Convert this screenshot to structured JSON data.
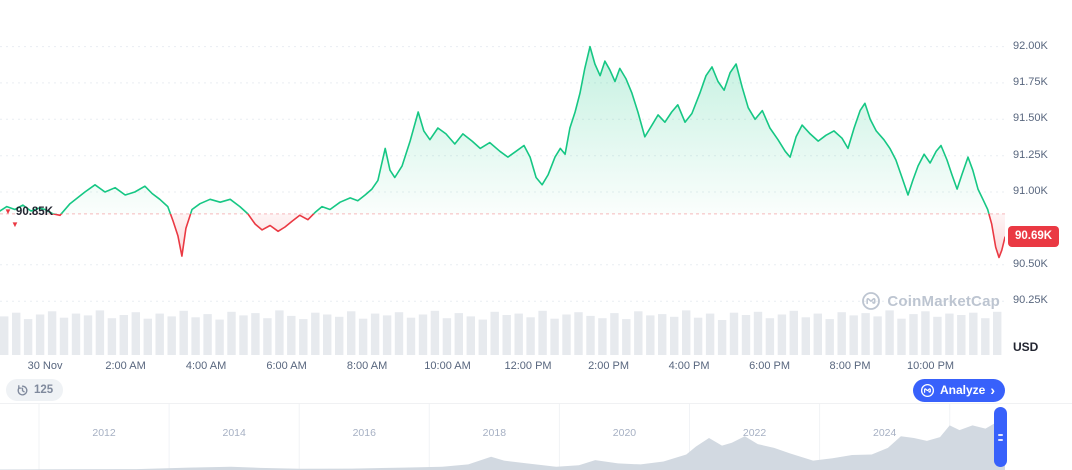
{
  "colors": {
    "up": "#16c784",
    "down": "#ea3943",
    "accent_blue": "#3861fb",
    "axis_text": "#58667e",
    "muted_text": "#a6b0c3",
    "grid": "#e9edf2",
    "volume_bar": "#e7eaee",
    "mini_fill": "#d2d9e1",
    "badge_bg": "#ea3943",
    "watermark": "#bdc5d1"
  },
  "y_axis": {
    "unit_label": "USD",
    "current_price": {
      "label": "90.69K",
      "value": 90.69
    },
    "open_marker": {
      "label": "90.85K",
      "value": 90.85
    }
  },
  "toolbar": {
    "history_count": "125",
    "analyze_label": "Analyze",
    "analyze_chevron": "›"
  },
  "watermark": {
    "text": "CoinMarketCap"
  },
  "chart_data": [
    {
      "type": "area",
      "name": "intraday-price",
      "title": "Price (USD), 30 Nov",
      "x_unit": "hours since 30 Nov 00:00",
      "x_range": [
        -1.12,
        23.85
      ],
      "y_range": [
        89.88,
        92.32
      ],
      "baseline": 90.85,
      "last_value": 90.69,
      "up_color": "#16c784",
      "down_color": "#ea3943",
      "y_ticks": [
        {
          "label": "92.00K",
          "value": 92.0
        },
        {
          "label": "91.75K",
          "value": 91.75
        },
        {
          "label": "91.50K",
          "value": 91.5
        },
        {
          "label": "91.25K",
          "value": 91.25
        },
        {
          "label": "91.00K",
          "value": 91.0
        },
        {
          "label": "90.50K",
          "value": 90.5
        },
        {
          "label": "90.25K",
          "value": 90.25
        }
      ],
      "x_ticks": [
        {
          "label": "30 Nov",
          "hour": 0
        },
        {
          "label": "2:00 AM",
          "hour": 2
        },
        {
          "label": "4:00 AM",
          "hour": 4
        },
        {
          "label": "6:00 AM",
          "hour": 6
        },
        {
          "label": "8:00 AM",
          "hour": 8
        },
        {
          "label": "10:00 AM",
          "hour": 10
        },
        {
          "label": "12:00 PM",
          "hour": 12
        },
        {
          "label": "2:00 PM",
          "hour": 14
        },
        {
          "label": "4:00 PM",
          "hour": 16
        },
        {
          "label": "6:00 PM",
          "hour": 18
        },
        {
          "label": "8:00 PM",
          "hour": 20
        },
        {
          "label": "10:00 PM",
          "hour": 22
        }
      ],
      "points": [
        [
          -1.12,
          90.87
        ],
        [
          -0.95,
          90.9
        ],
        [
          -0.75,
          90.88
        ],
        [
          -0.55,
          90.91
        ],
        [
          -0.35,
          90.87
        ],
        [
          -0.15,
          90.89
        ],
        [
          0.0,
          90.88
        ],
        [
          0.2,
          90.85
        ],
        [
          0.37,
          90.84
        ],
        [
          0.62,
          90.92
        ],
        [
          0.99,
          91.0
        ],
        [
          1.24,
          91.05
        ],
        [
          1.49,
          91.0
        ],
        [
          1.74,
          91.03
        ],
        [
          1.99,
          90.98
        ],
        [
          2.23,
          91.0
        ],
        [
          2.48,
          91.04
        ],
        [
          2.66,
          90.99
        ],
        [
          2.85,
          90.95
        ],
        [
          3.05,
          90.9
        ],
        [
          3.18,
          90.8
        ],
        [
          3.3,
          90.7
        ],
        [
          3.4,
          90.56
        ],
        [
          3.5,
          90.75
        ],
        [
          3.65,
          90.88
        ],
        [
          3.85,
          90.92
        ],
        [
          4.1,
          90.95
        ],
        [
          4.35,
          90.93
        ],
        [
          4.6,
          90.95
        ],
        [
          4.84,
          90.9
        ],
        [
          5.04,
          90.85
        ],
        [
          5.22,
          90.78
        ],
        [
          5.39,
          90.74
        ],
        [
          5.59,
          90.77
        ],
        [
          5.79,
          90.73
        ],
        [
          5.96,
          90.76
        ],
        [
          6.14,
          90.8
        ],
        [
          6.33,
          90.84
        ],
        [
          6.53,
          90.81
        ],
        [
          6.71,
          90.86
        ],
        [
          6.88,
          90.9
        ],
        [
          7.08,
          90.88
        ],
        [
          7.33,
          90.93
        ],
        [
          7.58,
          90.96
        ],
        [
          7.77,
          90.94
        ],
        [
          7.95,
          90.98
        ],
        [
          8.12,
          91.02
        ],
        [
          8.27,
          91.08
        ],
        [
          8.45,
          91.3
        ],
        [
          8.57,
          91.15
        ],
        [
          8.69,
          91.1
        ],
        [
          8.87,
          91.18
        ],
        [
          9.07,
          91.35
        ],
        [
          9.27,
          91.55
        ],
        [
          9.41,
          91.42
        ],
        [
          9.56,
          91.36
        ],
        [
          9.76,
          91.44
        ],
        [
          9.96,
          91.4
        ],
        [
          10.18,
          91.33
        ],
        [
          10.38,
          91.4
        ],
        [
          10.61,
          91.35
        ],
        [
          10.81,
          91.3
        ],
        [
          11.05,
          91.34
        ],
        [
          11.3,
          91.28
        ],
        [
          11.5,
          91.24
        ],
        [
          11.7,
          91.28
        ],
        [
          11.9,
          91.32
        ],
        [
          12.05,
          91.24
        ],
        [
          12.2,
          91.1
        ],
        [
          12.35,
          91.05
        ],
        [
          12.5,
          91.12
        ],
        [
          12.67,
          91.24
        ],
        [
          12.8,
          91.3
        ],
        [
          12.92,
          91.26
        ],
        [
          13.04,
          91.44
        ],
        [
          13.17,
          91.55
        ],
        [
          13.29,
          91.68
        ],
        [
          13.41,
          91.85
        ],
        [
          13.54,
          92.0
        ],
        [
          13.66,
          91.88
        ],
        [
          13.79,
          91.8
        ],
        [
          13.91,
          91.9
        ],
        [
          14.03,
          91.84
        ],
        [
          14.16,
          91.76
        ],
        [
          14.28,
          91.85
        ],
        [
          14.43,
          91.78
        ],
        [
          14.58,
          91.68
        ],
        [
          14.73,
          91.55
        ],
        [
          14.9,
          91.38
        ],
        [
          15.08,
          91.46
        ],
        [
          15.23,
          91.53
        ],
        [
          15.4,
          91.48
        ],
        [
          15.57,
          91.55
        ],
        [
          15.72,
          91.6
        ],
        [
          15.9,
          91.48
        ],
        [
          16.07,
          91.54
        ],
        [
          16.27,
          91.68
        ],
        [
          16.42,
          91.8
        ],
        [
          16.57,
          91.86
        ],
        [
          16.72,
          91.76
        ],
        [
          16.87,
          91.7
        ],
        [
          17.02,
          91.82
        ],
        [
          17.17,
          91.88
        ],
        [
          17.32,
          91.72
        ],
        [
          17.47,
          91.58
        ],
        [
          17.64,
          91.5
        ],
        [
          17.82,
          91.56
        ],
        [
          18.01,
          91.44
        ],
        [
          18.21,
          91.36
        ],
        [
          18.39,
          91.28
        ],
        [
          18.51,
          91.24
        ],
        [
          18.66,
          91.38
        ],
        [
          18.81,
          91.46
        ],
        [
          19.01,
          91.4
        ],
        [
          19.21,
          91.35
        ],
        [
          19.4,
          91.39
        ],
        [
          19.6,
          91.42
        ],
        [
          19.8,
          91.37
        ],
        [
          19.95,
          91.3
        ],
        [
          20.1,
          91.44
        ],
        [
          20.25,
          91.56
        ],
        [
          20.37,
          91.61
        ],
        [
          20.5,
          91.5
        ],
        [
          20.65,
          91.42
        ],
        [
          20.84,
          91.36
        ],
        [
          20.99,
          91.3
        ],
        [
          21.14,
          91.22
        ],
        [
          21.29,
          91.1
        ],
        [
          21.44,
          90.98
        ],
        [
          21.56,
          91.08
        ],
        [
          21.69,
          91.18
        ],
        [
          21.84,
          91.26
        ],
        [
          21.99,
          91.2
        ],
        [
          22.14,
          91.28
        ],
        [
          22.26,
          91.32
        ],
        [
          22.41,
          91.22
        ],
        [
          22.53,
          91.12
        ],
        [
          22.66,
          91.02
        ],
        [
          22.78,
          91.12
        ],
        [
          22.93,
          91.24
        ],
        [
          23.05,
          91.15
        ],
        [
          23.18,
          91.02
        ],
        [
          23.3,
          90.95
        ],
        [
          23.42,
          90.88
        ],
        [
          23.52,
          90.78
        ],
        [
          23.62,
          90.62
        ],
        [
          23.7,
          90.55
        ],
        [
          23.77,
          90.6
        ],
        [
          23.85,
          90.69
        ]
      ]
    },
    {
      "type": "bar",
      "name": "volume",
      "note": "normalized bar heights, left to right",
      "values": [
        0.84,
        0.92,
        0.78,
        0.88,
        0.95,
        0.81,
        0.9,
        0.86,
        0.97,
        0.8,
        0.87,
        0.93,
        0.79,
        0.9,
        0.84,
        0.96,
        0.82,
        0.89,
        0.77,
        0.94,
        0.86,
        0.91,
        0.8,
        0.97,
        0.85,
        0.78,
        0.92,
        0.88,
        0.83,
        0.95,
        0.79,
        0.9,
        0.86,
        0.93,
        0.81,
        0.88,
        0.96,
        0.8,
        0.91,
        0.84,
        0.77,
        0.94,
        0.87,
        0.9,
        0.82,
        0.96,
        0.79,
        0.88,
        0.93,
        0.85,
        0.8,
        0.91,
        0.78,
        0.95,
        0.86,
        0.89,
        0.83,
        0.97,
        0.81,
        0.9,
        0.76,
        0.92,
        0.87,
        0.94,
        0.8,
        0.88,
        0.96,
        0.82,
        0.9,
        0.78,
        0.93,
        0.86,
        0.91,
        0.84,
        0.97,
        0.79,
        0.89,
        0.95,
        0.83,
        0.9,
        0.87,
        0.92,
        0.8,
        0.94
      ]
    },
    {
      "type": "area",
      "name": "all-time-overview",
      "x_unit": "year",
      "x_range": [
        2010.4,
        2025.85
      ],
      "year_labels": [
        "2012",
        "2014",
        "2016",
        "2018",
        "2020",
        "2022",
        "2024"
      ],
      "year_label_values": [
        2012,
        2014,
        2016,
        2018,
        2020,
        2022,
        2024
      ],
      "gridline_years": [
        2011,
        2013,
        2015,
        2017,
        2019,
        2021,
        2023,
        2025
      ],
      "note": "normalized price silhouette 0-1",
      "points": [
        [
          2010.4,
          0.01
        ],
        [
          2011.5,
          0.015
        ],
        [
          2012.5,
          0.02
        ],
        [
          2013.3,
          0.05
        ],
        [
          2013.95,
          0.07
        ],
        [
          2014.4,
          0.045
        ],
        [
          2015.0,
          0.025
        ],
        [
          2015.8,
          0.03
        ],
        [
          2016.6,
          0.05
        ],
        [
          2017.2,
          0.07
        ],
        [
          2017.6,
          0.12
        ],
        [
          2017.95,
          0.28
        ],
        [
          2018.15,
          0.2
        ],
        [
          2018.5,
          0.14
        ],
        [
          2018.95,
          0.07
        ],
        [
          2019.3,
          0.1
        ],
        [
          2019.55,
          0.21
        ],
        [
          2019.9,
          0.14
        ],
        [
          2020.25,
          0.12
        ],
        [
          2020.6,
          0.18
        ],
        [
          2020.95,
          0.33
        ],
        [
          2021.1,
          0.5
        ],
        [
          2021.3,
          0.68
        ],
        [
          2021.5,
          0.52
        ],
        [
          2021.65,
          0.58
        ],
        [
          2021.85,
          0.72
        ],
        [
          2022.05,
          0.55
        ],
        [
          2022.3,
          0.47
        ],
        [
          2022.55,
          0.35
        ],
        [
          2022.9,
          0.2
        ],
        [
          2023.2,
          0.25
        ],
        [
          2023.5,
          0.32
        ],
        [
          2023.8,
          0.33
        ],
        [
          2024.05,
          0.47
        ],
        [
          2024.25,
          0.72
        ],
        [
          2024.45,
          0.68
        ],
        [
          2024.65,
          0.62
        ],
        [
          2024.85,
          0.7
        ],
        [
          2025.0,
          0.95
        ],
        [
          2025.15,
          0.85
        ],
        [
          2025.35,
          0.95
        ],
        [
          2025.55,
          0.88
        ],
        [
          2025.7,
          1.0
        ],
        [
          2025.85,
          0.82
        ]
      ]
    }
  ]
}
